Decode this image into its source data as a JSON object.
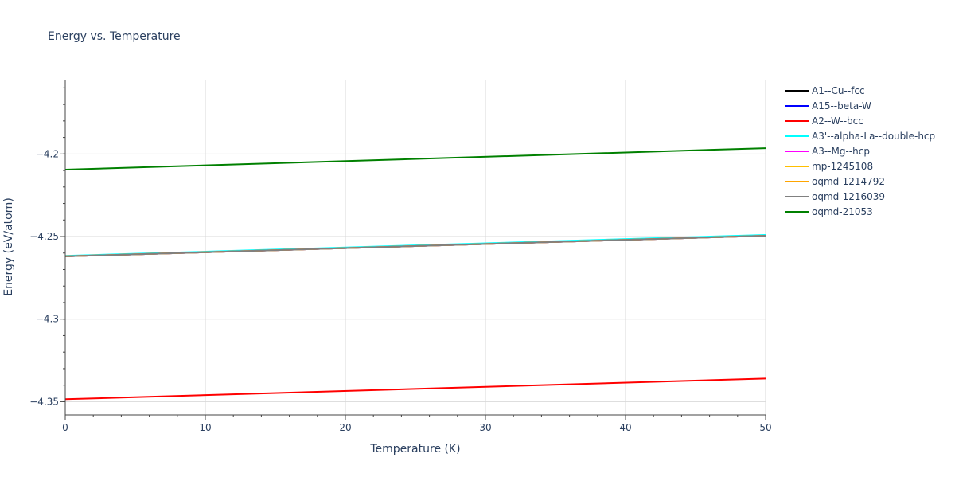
{
  "chart_data": {
    "type": "line",
    "title": "Energy vs. Temperature",
    "xlabel": "Temperature (K)",
    "ylabel": "Energy (eV/atom)",
    "xlim": [
      0,
      50
    ],
    "ylim": [
      -4.358,
      -4.155
    ],
    "x_ticks": [
      0,
      10,
      20,
      30,
      40,
      50
    ],
    "x_tick_labels": [
      "0",
      "10",
      "20",
      "30",
      "40",
      "50"
    ],
    "x_minor_step": 2,
    "y_ticks": [
      -4.35,
      -4.3,
      -4.25,
      -4.2
    ],
    "y_tick_labels": [
      "−4.35",
      "−4.3",
      "−4.25",
      "−4.2"
    ],
    "y_minor_step": 0.01,
    "grid": true,
    "legend_position": "right",
    "series": [
      {
        "name": "A1--Cu--fcc",
        "color": "#000000",
        "x": [
          0,
          50
        ],
        "y": [
          -4.262,
          -4.2495
        ]
      },
      {
        "name": "A15--beta-W",
        "color": "#0000ff",
        "x": [
          0,
          50
        ],
        "y": [
          -4.262,
          -4.2495
        ]
      },
      {
        "name": "A2--W--bcc",
        "color": "#ff0000",
        "x": [
          0,
          50
        ],
        "y": [
          -4.3485,
          -4.336
        ]
      },
      {
        "name": "A3'--alpha-La--double-hcp",
        "color": "#00ffff",
        "x": [
          0,
          50
        ],
        "y": [
          -4.2617,
          -4.249
        ]
      },
      {
        "name": "A3--Mg--hcp",
        "color": "#ff00ff",
        "x": [
          0,
          50
        ],
        "y": [
          -4.262,
          -4.2495
        ]
      },
      {
        "name": "mp-1245108",
        "color": "#ffbf00",
        "x": [
          0,
          50
        ],
        "y": [
          -4.262,
          -4.2495
        ]
      },
      {
        "name": "oqmd-1214792",
        "color": "#ffa500",
        "x": [
          0,
          50
        ],
        "y": [
          -4.262,
          -4.2495
        ]
      },
      {
        "name": "oqmd-1216039",
        "color": "#808080",
        "x": [
          0,
          50
        ],
        "y": [
          -4.262,
          -4.2495
        ]
      },
      {
        "name": "oqmd-21053",
        "color": "#008000",
        "x": [
          0,
          50
        ],
        "y": [
          -4.2095,
          -4.1965
        ]
      }
    ]
  }
}
